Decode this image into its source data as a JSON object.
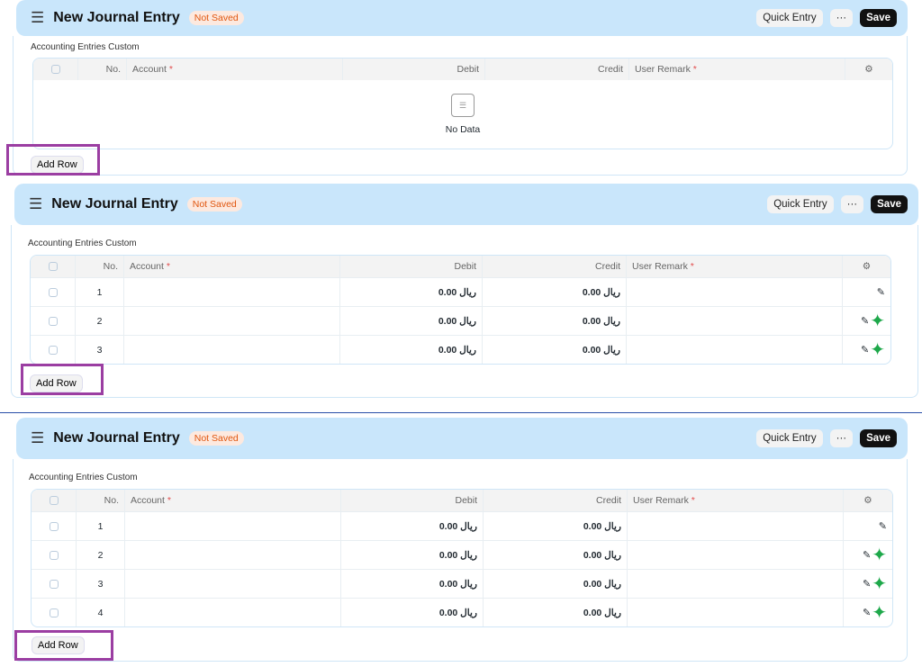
{
  "header": {
    "title": "New Journal Entry",
    "status": "Not Saved",
    "quick_entry": "Quick Entry",
    "more": "···",
    "save": "Save"
  },
  "section_label": "Accounting Entries Custom",
  "columns": {
    "no": "No.",
    "account": "Account",
    "debit": "Debit",
    "credit": "Credit",
    "remark": "User Remark",
    "required_mark": "*"
  },
  "empty_text": "No Data",
  "add_row": "Add Row",
  "panels": [
    {
      "rows": []
    },
    {
      "rows": [
        {
          "no": "1",
          "debit": "ريال 0.00",
          "credit": "ريال 0.00",
          "marker": false
        },
        {
          "no": "2",
          "debit": "ريال 0.00",
          "credit": "ريال 0.00",
          "marker": true
        },
        {
          "no": "3",
          "debit": "ريال 0.00",
          "credit": "ريال 0.00",
          "marker": true
        }
      ]
    },
    {
      "rows": [
        {
          "no": "1",
          "debit": "ريال 0.00",
          "credit": "ريال 0.00",
          "marker": false
        },
        {
          "no": "2",
          "debit": "ريال 0.00",
          "credit": "ريال 0.00",
          "marker": true
        },
        {
          "no": "3",
          "debit": "ريال 0.00",
          "credit": "ريال 0.00",
          "marker": true
        },
        {
          "no": "4",
          "debit": "ريال 0.00",
          "credit": "ريال 0.00",
          "marker": true
        }
      ]
    }
  ],
  "colors": {
    "header_bg": "#c9e6fb",
    "highlight": "#9b3ea2",
    "marker": "#1ea84a"
  }
}
